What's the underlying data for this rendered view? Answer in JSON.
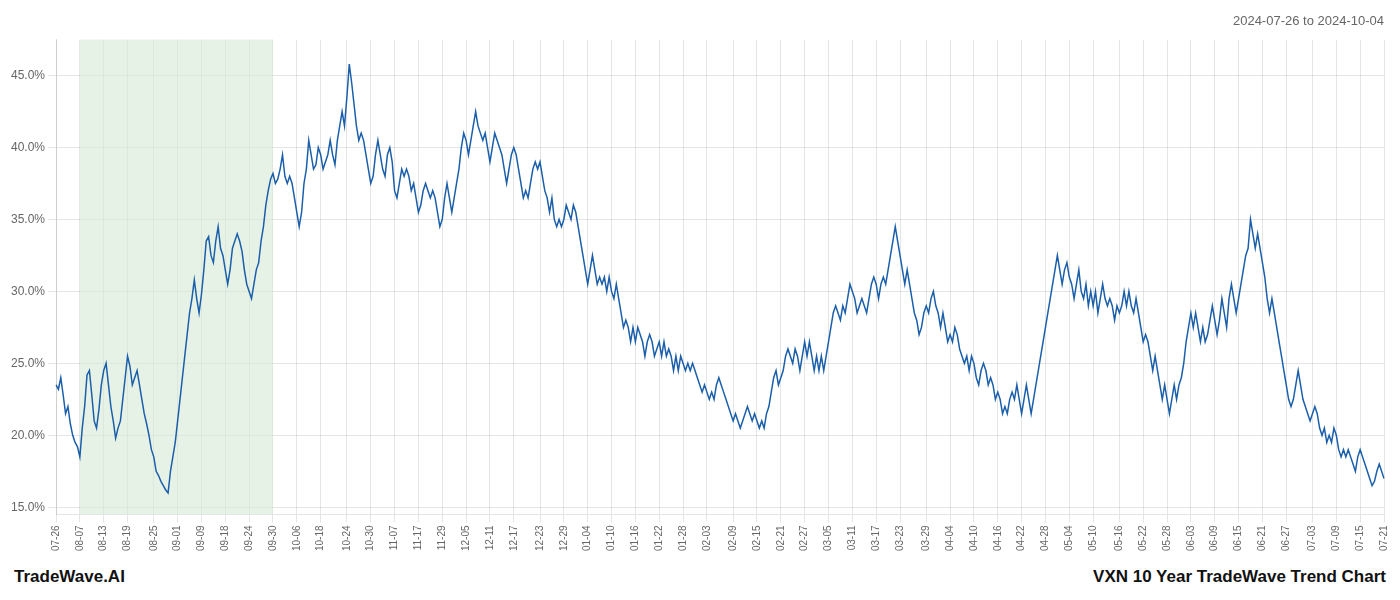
{
  "chart_data": {
    "type": "line",
    "title": "2024-07-26 to 2024-10-04",
    "annotations": [
      "TradeWave.AI",
      "VXN 10 Year TradeWave Trend Chart"
    ],
    "color": "#1b5faa",
    "ylim": [
      14.5,
      47.5
    ],
    "yticks": [
      {
        "value": 15.0,
        "label": "15.0%"
      },
      {
        "value": 20.0,
        "label": "20.0%"
      },
      {
        "value": 25.0,
        "label": "25.0%"
      },
      {
        "value": 30.0,
        "label": "30.0%"
      },
      {
        "value": 35.0,
        "label": "35.0%"
      },
      {
        "value": 40.0,
        "label": "40.0%"
      },
      {
        "value": 45.0,
        "label": "45.0%"
      }
    ],
    "grid": true,
    "highlight": {
      "start": "08-07",
      "end": "09-30",
      "color": "#d6ead6"
    },
    "categories": [
      "07-26",
      null,
      null,
      null,
      null,
      null,
      null,
      null,
      null,
      null,
      "08-07",
      null,
      null,
      null,
      null,
      null,
      null,
      null,
      null,
      null,
      "08-13",
      null,
      null,
      null,
      null,
      null,
      null,
      null,
      null,
      null,
      "08-19",
      null,
      null,
      null,
      null,
      null,
      null,
      null,
      null,
      null,
      null,
      "08-25",
      null,
      null,
      null,
      null,
      null,
      null,
      null,
      null,
      null,
      "09-01",
      null,
      null,
      null,
      null,
      null,
      null,
      null,
      null,
      null,
      "09-09",
      null,
      null,
      null,
      null,
      null,
      null,
      null,
      null,
      null,
      "09-18",
      null,
      null,
      null,
      null,
      null,
      null,
      null,
      null,
      null,
      "09-24",
      null,
      null,
      null,
      null,
      null,
      null,
      null,
      null,
      null,
      "09-30",
      null,
      null,
      null,
      null,
      null,
      null,
      null,
      null,
      null,
      "10-06",
      null,
      null,
      null,
      null,
      null,
      null,
      null,
      null,
      null,
      "10-18",
      null,
      null,
      null,
      null,
      null,
      null,
      null,
      null,
      null,
      null,
      "10-24",
      null,
      null,
      null,
      null,
      null,
      null,
      null,
      null,
      null,
      "10-30",
      null,
      null,
      null,
      null,
      null,
      null,
      null,
      null,
      null,
      "11-07",
      null,
      null,
      null,
      null,
      null,
      null,
      null,
      null,
      null,
      "11-17",
      null,
      null,
      null,
      null,
      null,
      null,
      null,
      null,
      null,
      "11-29",
      null,
      null,
      null,
      null,
      null,
      null,
      null,
      null,
      null,
      "12-05",
      null,
      null,
      null,
      null,
      null,
      null,
      null,
      null,
      null,
      "12-11",
      null,
      null,
      null,
      null,
      null,
      null,
      null,
      null,
      null,
      "12-17",
      null,
      null,
      null,
      null,
      null,
      null,
      null,
      null,
      null,
      null,
      "12-23",
      null,
      null,
      null,
      null,
      null,
      null,
      null,
      null,
      null,
      "12-29",
      null,
      null,
      null,
      null,
      null,
      null,
      null,
      null,
      null,
      "01-04",
      null,
      null,
      null,
      null,
      null,
      null,
      null,
      null,
      null,
      "01-10",
      null,
      null,
      null,
      null,
      null,
      null,
      null,
      null,
      null,
      "01-16",
      null,
      null,
      null,
      null,
      null,
      null,
      null,
      null,
      null,
      "01-22",
      null,
      null,
      null,
      null,
      null,
      null,
      null,
      null,
      null,
      "01-28",
      null,
      null,
      null,
      null,
      null,
      null,
      null,
      null,
      null,
      "02-03",
      null,
      null,
      null,
      null,
      null,
      null,
      null,
      null,
      null,
      null,
      "02-09",
      null,
      null,
      null,
      null,
      null,
      null,
      null,
      null,
      null,
      "02-15",
      null,
      null,
      null,
      null,
      null,
      null,
      null,
      null,
      null,
      "02-21",
      null,
      null,
      null,
      null,
      null,
      null,
      null,
      null,
      null,
      "02-27",
      null,
      null,
      null,
      null,
      null,
      null,
      null,
      null,
      null,
      "03-05",
      null,
      null,
      null,
      null,
      null,
      null,
      null,
      null,
      null,
      "03-11",
      null,
      null,
      null,
      null,
      null,
      null,
      null,
      null,
      null,
      "03-17",
      null,
      null,
      null,
      null,
      null,
      null,
      null,
      null,
      null,
      "03-23",
      null,
      null,
      null,
      null,
      null,
      null,
      null,
      null,
      null,
      null,
      "03-29",
      null,
      null,
      null,
      null,
      null,
      null,
      null,
      null,
      null,
      "04-04",
      null,
      null,
      null,
      null,
      null,
      null,
      null,
      null,
      null,
      "04-10",
      null,
      null,
      null,
      null,
      null,
      null,
      null,
      null,
      null,
      "04-16",
      null,
      null,
      null,
      null,
      null,
      null,
      null,
      null,
      null,
      "04-22",
      null,
      null,
      null,
      null,
      null,
      null,
      null,
      null,
      null,
      "04-28",
      null,
      null,
      null,
      null,
      null,
      null,
      null,
      null,
      null,
      "05-04",
      null,
      null,
      null,
      null,
      null,
      null,
      null,
      null,
      null,
      "05-10",
      null,
      null,
      null,
      null,
      null,
      null,
      null,
      null,
      null,
      null,
      "05-16",
      null,
      null,
      null,
      null,
      null,
      null,
      null,
      null,
      null,
      "05-22",
      null,
      null,
      null,
      null,
      null,
      null,
      null,
      null,
      null,
      "05-28",
      null,
      null,
      null,
      null,
      null,
      null,
      null,
      null,
      null,
      "06-03",
      null,
      null,
      null,
      null,
      null,
      null,
      null,
      null,
      null,
      "06-09",
      null,
      null,
      null,
      null,
      null,
      null,
      null,
      null,
      null,
      "06-15",
      null,
      null,
      null,
      null,
      null,
      null,
      null,
      null,
      null,
      "06-21",
      null,
      null,
      null,
      null,
      null,
      null,
      null,
      null,
      null,
      "06-27",
      null,
      null,
      null,
      null,
      null,
      null,
      null,
      null,
      null,
      null,
      "07-03",
      null,
      null,
      null,
      null,
      null,
      null,
      null,
      null,
      null,
      "07-09",
      null,
      null,
      null,
      null,
      null,
      null,
      null,
      null,
      null,
      "07-15",
      null,
      null,
      null,
      null,
      null,
      null,
      null,
      null,
      null,
      "07-21"
    ],
    "values": [
      23.5,
      23.2,
      24.0,
      22.8,
      21.5,
      22.0,
      20.8,
      20.0,
      19.5,
      19.2,
      18.5,
      20.5,
      22.0,
      24.2,
      24.5,
      22.8,
      21.0,
      20.5,
      21.8,
      23.5,
      24.5,
      25.0,
      23.5,
      22.0,
      21.0,
      19.8,
      20.5,
      21.0,
      22.5,
      24.0,
      25.5,
      24.8,
      23.5,
      24.0,
      24.5,
      23.5,
      22.5,
      21.5,
      20.8,
      20.0,
      19.0,
      18.5,
      17.5,
      17.2,
      16.8,
      16.5,
      16.2,
      16.0,
      17.5,
      18.5,
      19.5,
      21.0,
      22.5,
      24.0,
      25.5,
      27.0,
      28.5,
      29.5,
      30.8,
      29.5,
      28.5,
      29.8,
      31.5,
      33.5,
      33.8,
      32.5,
      32.0,
      33.5,
      34.5,
      33.0,
      32.5,
      31.5,
      30.5,
      31.5,
      33.0,
      33.5,
      34.0,
      33.5,
      32.8,
      31.5,
      30.5,
      30.0,
      29.5,
      30.5,
      31.5,
      32.0,
      33.5,
      34.5,
      36.0,
      37.0,
      37.8,
      38.2,
      37.5,
      37.8,
      38.5,
      39.5,
      38.0,
      37.5,
      38.0,
      37.5,
      36.5,
      35.5,
      34.5,
      35.5,
      37.5,
      38.5,
      40.5,
      39.5,
      38.5,
      38.8,
      40.0,
      39.5,
      38.5,
      39.0,
      39.5,
      40.5,
      39.5,
      38.8,
      40.5,
      41.5,
      42.5,
      41.5,
      43.5,
      45.8,
      44.5,
      43.0,
      41.5,
      40.5,
      41.0,
      40.5,
      39.5,
      38.5,
      37.5,
      38.0,
      39.5,
      40.5,
      39.5,
      38.5,
      38.0,
      39.5,
      40.0,
      39.0,
      37.0,
      36.5,
      37.5,
      38.5,
      38.0,
      38.5,
      38.0,
      37.0,
      37.5,
      36.5,
      35.5,
      36.0,
      37.0,
      37.5,
      37.0,
      36.5,
      37.0,
      36.5,
      35.5,
      34.5,
      35.0,
      36.5,
      37.5,
      36.5,
      35.5,
      36.5,
      37.5,
      38.5,
      40.0,
      41.0,
      40.5,
      39.5,
      40.5,
      41.5,
      42.5,
      41.5,
      41.0,
      40.5,
      41.0,
      40.0,
      39.0,
      40.0,
      41.0,
      40.5,
      40.0,
      39.5,
      38.5,
      37.5,
      38.5,
      39.5,
      40.0,
      39.5,
      38.5,
      37.5,
      36.5,
      37.0,
      36.5,
      37.5,
      38.5,
      39.0,
      38.5,
      39.0,
      38.0,
      37.0,
      36.5,
      35.5,
      36.5,
      35.0,
      34.5,
      35.0,
      34.5,
      35.0,
      36.0,
      35.5,
      35.0,
      36.0,
      35.5,
      34.5,
      33.5,
      32.5,
      31.5,
      30.5,
      31.5,
      32.5,
      31.5,
      30.5,
      31.0,
      30.5,
      31.0,
      30.0,
      31.0,
      30.0,
      29.5,
      30.5,
      29.5,
      28.5,
      27.5,
      28.0,
      27.5,
      26.5,
      27.5,
      26.5,
      27.5,
      27.0,
      26.5,
      25.5,
      26.5,
      27.0,
      26.5,
      25.5,
      26.0,
      26.5,
      25.5,
      26.5,
      25.5,
      26.0,
      25.5,
      24.5,
      25.5,
      24.5,
      25.5,
      25.0,
      24.5,
      25.0,
      24.5,
      25.0,
      24.5,
      24.0,
      23.5,
      23.0,
      23.5,
      23.0,
      22.5,
      23.0,
      22.5,
      23.5,
      24.0,
      23.5,
      23.0,
      22.5,
      22.0,
      21.5,
      21.0,
      21.5,
      21.0,
      20.5,
      21.0,
      21.5,
      22.0,
      21.5,
      21.0,
      21.5,
      21.0,
      20.5,
      21.0,
      20.5,
      21.5,
      22.0,
      23.0,
      24.0,
      24.5,
      23.5,
      24.0,
      24.5,
      25.5,
      26.0,
      25.5,
      25.0,
      26.0,
      25.5,
      24.5,
      25.5,
      26.5,
      25.5,
      26.5,
      25.5,
      24.5,
      25.5,
      24.5,
      25.5,
      24.5,
      25.5,
      26.5,
      27.5,
      28.5,
      29.0,
      28.5,
      28.0,
      29.0,
      28.5,
      29.5,
      30.5,
      30.0,
      29.5,
      28.5,
      29.0,
      29.5,
      29.0,
      28.5,
      29.5,
      30.5,
      31.0,
      30.5,
      29.5,
      30.5,
      31.0,
      30.5,
      31.5,
      32.5,
      33.5,
      34.5,
      33.5,
      32.5,
      31.5,
      30.5,
      31.5,
      30.5,
      29.5,
      28.5,
      28.0,
      27.0,
      27.5,
      28.5,
      29.0,
      28.5,
      29.5,
      30.0,
      29.0,
      28.5,
      27.5,
      28.5,
      27.5,
      26.5,
      27.0,
      26.5,
      27.5,
      27.0,
      26.0,
      25.5,
      25.0,
      25.5,
      24.5,
      25.5,
      25.0,
      24.0,
      23.5,
      24.5,
      25.0,
      24.5,
      23.5,
      24.0,
      23.5,
      22.5,
      23.0,
      22.5,
      21.5,
      22.0,
      21.5,
      22.5,
      23.0,
      22.5,
      23.5,
      22.5,
      21.5,
      22.5,
      23.5,
      22.5,
      21.5,
      22.5,
      23.5,
      24.5,
      25.5,
      26.5,
      27.5,
      28.5,
      29.5,
      30.5,
      31.5,
      32.5,
      31.5,
      30.5,
      31.5,
      32.0,
      31.0,
      30.5,
      29.5,
      30.5,
      31.5,
      30.0,
      29.5,
      30.5,
      29.0,
      30.0,
      29.0,
      30.0,
      28.5,
      29.5,
      30.5,
      29.5,
      29.0,
      29.5,
      29.0,
      28.0,
      29.0,
      28.5,
      29.0,
      30.0,
      29.0,
      30.0,
      29.0,
      28.5,
      29.5,
      28.5,
      27.5,
      26.5,
      27.0,
      26.5,
      25.5,
      24.5,
      25.5,
      24.5,
      23.5,
      22.5,
      23.5,
      22.5,
      21.5,
      22.5,
      23.5,
      22.5,
      23.5,
      24.0,
      25.0,
      26.5,
      27.5,
      28.5,
      27.5,
      28.5,
      27.5,
      26.5,
      27.5,
      26.5,
      27.0,
      28.0,
      29.0,
      28.0,
      27.0,
      28.0,
      29.5,
      28.5,
      27.5,
      29.5,
      30.5,
      29.5,
      28.5,
      29.5,
      30.5,
      31.5,
      32.5,
      33.0,
      35.0,
      34.0,
      33.0,
      34.0,
      33.0,
      32.0,
      31.0,
      29.5,
      28.5,
      29.5,
      28.5,
      27.5,
      26.5,
      25.5,
      24.5,
      23.5,
      22.5,
      22.0,
      22.5,
      23.5,
      24.5,
      23.5,
      22.5,
      22.0,
      21.5,
      21.0,
      21.5,
      22.0,
      21.5,
      20.5,
      20.0,
      20.5,
      19.5,
      20.0,
      19.5,
      20.5,
      20.0,
      19.0,
      18.5,
      19.0,
      18.5,
      19.0,
      18.5,
      18.0,
      17.5,
      18.5,
      19.0,
      18.5,
      18.0,
      17.5,
      17.0,
      16.5,
      16.8,
      17.5,
      18.0,
      17.5,
      17.0
    ]
  }
}
